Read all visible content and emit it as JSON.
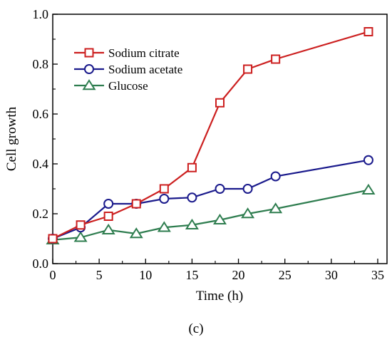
{
  "chart_data": {
    "type": "line",
    "xlabel": "Time (h)",
    "ylabel": "Cell growth",
    "caption": "(c)",
    "xlim": [
      0,
      36
    ],
    "ylim": [
      0,
      1.0
    ],
    "xticks": [
      "0",
      "5",
      "10",
      "15",
      "20",
      "25",
      "30",
      "35"
    ],
    "yticks": [
      "0.0",
      "0.2",
      "0.4",
      "0.6",
      "0.8",
      "1.0"
    ],
    "legend_position": "top-left",
    "grid": false,
    "series": [
      {
        "name": "Sodium citrate",
        "color": "#cc1f1f",
        "marker": "square",
        "x": [
          0,
          3,
          6,
          9,
          12,
          15,
          18,
          21,
          24,
          34
        ],
        "y": [
          0.1,
          0.155,
          0.19,
          0.24,
          0.3,
          0.385,
          0.645,
          0.78,
          0.82,
          0.93
        ]
      },
      {
        "name": "Sodium acetate",
        "color": "#1a1a8c",
        "marker": "circle",
        "x": [
          0,
          3,
          6,
          9,
          12,
          15,
          18,
          21,
          24,
          34
        ],
        "y": [
          0.1,
          0.145,
          0.24,
          0.24,
          0.26,
          0.265,
          0.3,
          0.3,
          0.35,
          0.415
        ]
      },
      {
        "name": "Glucose",
        "color": "#2e7d4f",
        "marker": "triangle",
        "x": [
          0,
          3,
          6,
          9,
          12,
          15,
          18,
          21,
          24,
          34
        ],
        "y": [
          0.095,
          0.105,
          0.135,
          0.12,
          0.145,
          0.155,
          0.175,
          0.2,
          0.22,
          0.295
        ]
      }
    ]
  }
}
